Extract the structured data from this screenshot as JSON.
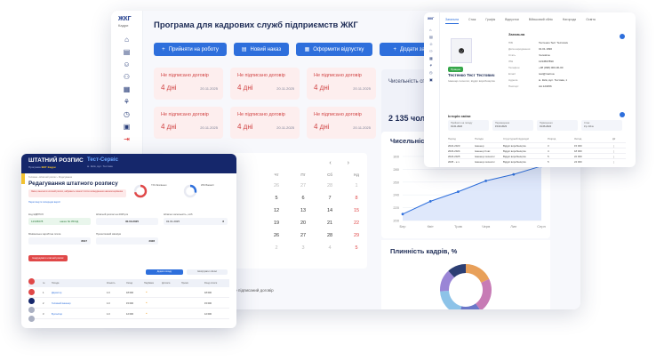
{
  "main": {
    "logo": "ЖКГ",
    "logo_sub": "Кадри",
    "title": "Програма для кадрових служб підприємств ЖКГ",
    "buttons": [
      {
        "label": "Прийняти на роботу"
      },
      {
        "label": "Новий наказ"
      },
      {
        "label": "Оформити відпустку"
      },
      {
        "label": "Додати запис"
      }
    ],
    "contract_cards": [
      {
        "title": "Не підписано договір",
        "days": "4 дні",
        "date": "20.11.2025"
      },
      {
        "title": "Не підписано договір",
        "days": "4 дні",
        "date": "20.11.2025"
      },
      {
        "title": "Не підписано договір",
        "days": "4 дні",
        "date": "20.11.2025"
      },
      {
        "title": "Не підписано договір",
        "days": "4 дні",
        "date": "20.11.2025"
      },
      {
        "title": "Не підписано договір",
        "days": "4 дні",
        "date": "20.11.2025"
      },
      {
        "title": "Не підписано договір",
        "days": "4 дні",
        "date": "20.11.2025"
      }
    ],
    "employees_label": "Чисельність співробітників",
    "employees_count": "2 135 чол",
    "calendar": {
      "weekdays": [
        "Чт",
        "Пт",
        "Сб",
        "Нд"
      ],
      "rows": [
        [
          "26",
          "27",
          "28",
          "1"
        ],
        [
          "5",
          "6",
          "7",
          "8"
        ],
        [
          "12",
          "13",
          "14",
          "15"
        ],
        [
          "19",
          "20",
          "21",
          "22"
        ],
        [
          "26",
          "27",
          "28",
          "29"
        ],
        [
          "2",
          "3",
          "4",
          "5"
        ]
      ],
      "legend": "Не підписаний договір"
    },
    "line_chart_title": "Чисельність, %",
    "donut_title": "Плинність кадрів, %"
  },
  "chart_data": [
    {
      "type": "line",
      "title": "Чисельність, %",
      "x": [
        "Бер",
        "Квіт",
        "Трав",
        "Черв",
        "Лип",
        "Серп"
      ],
      "y_ticks": [
        "300",
        "280",
        "260",
        "240",
        "220",
        "200"
      ],
      "ylim": [
        200,
        300
      ],
      "series": [
        {
          "values": [
            210,
            230,
            245,
            262,
            272,
            285
          ]
        }
      ]
    },
    {
      "type": "pie",
      "title": "Плинність кадрів, %",
      "slices": [
        {
          "value": 18,
          "color": "#e8a05a"
        },
        {
          "value": 22,
          "color": "#c77bb5"
        },
        {
          "value": 14,
          "color": "#6a77c8"
        },
        {
          "value": 20,
          "color": "#8dc3e8"
        },
        {
          "value": 14,
          "color": "#9a85d6"
        },
        {
          "value": 12,
          "color": "#2c3e73"
        }
      ]
    }
  ],
  "profile": {
    "tabs": [
      "Загальна",
      "Стаж",
      "Графік",
      "Відпустки",
      "Військовий облік",
      "Нагороди",
      "Освіта"
    ],
    "status": "Працює",
    "name": "Тестенко Тест Тестович",
    "subtitle": "Інженер-технолог, відділ виробництва",
    "section": "Загальна",
    "fields": [
      {
        "label": "ПІБ",
        "value": "Тестенко Тест Тестович"
      },
      {
        "label": "Дата народження",
        "value": "01.01.1990"
      },
      {
        "label": "Стать",
        "value": "Чоловіча"
      },
      {
        "label": "ІПН",
        "value": "1234567890"
      },
      {
        "label": "Телефон",
        "value": "+38 (098) 000-00-00"
      },
      {
        "label": "Email",
        "value": "test@mail.ua"
      },
      {
        "label": "Адреса",
        "value": "м. Київ, вул. Тестова, 1"
      },
      {
        "label": "Паспорт",
        "value": "AA 123456"
      }
    ],
    "history_title": "Історія зміни",
    "history_tiles": [
      {
        "label": "Прийнято на посаду",
        "value": "01.01.2022"
      },
      {
        "label": "Переведення",
        "value": "15.03.2023"
      },
      {
        "label": "Підвищення",
        "value": "01.06.2024"
      },
      {
        "label": "Стаж",
        "value": "3 р. 10 м."
      }
    ],
    "history_columns": [
      "Період",
      "Посада",
      "Структурний підрозділ",
      "Розряд",
      "Оклад",
      "Дії"
    ],
    "history_rows": [
      [
        "2022-2023",
        "Інженер",
        "Відділ виробництва",
        "3",
        "15 000",
        "⋮"
      ],
      [
        "2023-2024",
        "Інженер II кат.",
        "Відділ виробництва",
        "4",
        "18 000",
        "⋮"
      ],
      [
        "2024-2025",
        "Інженер-технолог",
        "Відділ виробництва",
        "5",
        "22 000",
        "⋮"
      ],
      [
        "2025 - н.ч.",
        "Інженер-технолог",
        "Відділ виробництва",
        "5",
        "24 000",
        "⋮"
      ]
    ]
  },
  "staff": {
    "title": "ШТАТНИЙ РОЗПИС",
    "subtitle_prefix": "Програма",
    "subtitle_brand": "ЖКГ Кадри",
    "org": "Тест-Сервіс",
    "org_sub": "м. Київ, вул. Тестова",
    "breadcrumb": "Головна › Штатний розпис › Редагування",
    "heading": "Редагування штатного розпису",
    "warning": "Зміни, внесені в штатний розпис, набувають чинності після затвердження наказом керівника",
    "link": "Переглянути попередні версії",
    "donuts": [
      {
        "label": "Заповнено",
        "pct": "71%"
      },
      {
        "label": "Вакансії",
        "pct": "29%"
      }
    ],
    "fields": [
      {
        "label": "Код ЄДРПОУ",
        "value": "12345678"
      },
      {
        "label": "Штатний розпис на 2025 рік",
        "value": "30.03.2025"
      },
      {
        "label": "Штатна чисельність, осіб",
        "value": "8"
      },
      {
        "label": "Мінімальна заробітна плата",
        "value": "8647"
      },
      {
        "label": "Прожитковий мінімум",
        "value": "3328"
      }
    ],
    "field_value_2": "наказ № 05/СД",
    "field_value_date": "01.01.2025",
    "print_button": "Надрукувати штатний розпис",
    "btn_add": "Додати посаду",
    "btn_import": "Імпортувати з Excel",
    "columns": [
      "№",
      "Посада",
      "Кількість",
      "Оклад",
      "Надбавка",
      "Доплата",
      "Премія",
      "Фонд оплати"
    ],
    "rows": [
      [
        "1",
        "Директор",
        "1.0",
        "18 000",
        "",
        "",
        "",
        "18 000"
      ],
      [
        "2",
        "Головний інженер",
        "1.0",
        "15 000",
        "",
        "",
        "",
        "15 000"
      ],
      [
        "3",
        "Бухгалтер",
        "1.0",
        "12 000",
        "",
        "",
        "",
        "12 000"
      ]
    ]
  }
}
